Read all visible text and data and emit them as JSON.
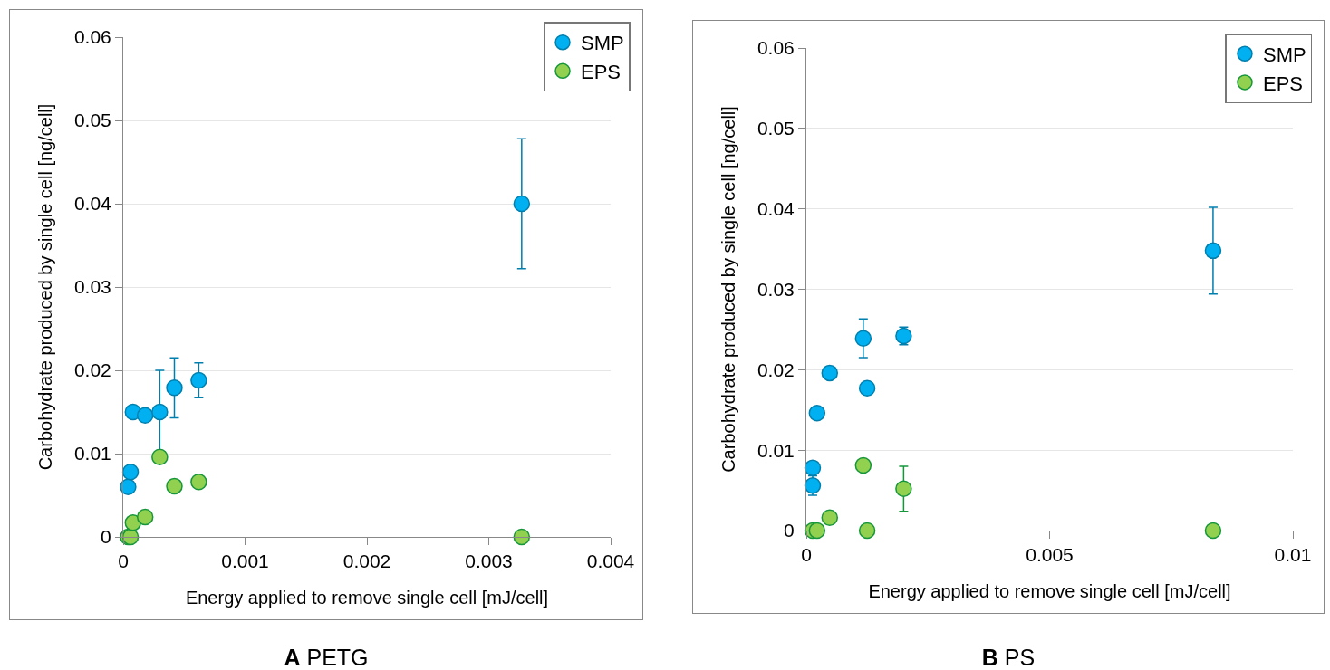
{
  "chart_data": [
    {
      "type": "scatter",
      "title": "A PETG",
      "xlabel": "Energy applied to remove single cell [mJ/cell]",
      "ylabel": "Carbohydrate produced by single cell [ng/cell]",
      "xlim": [
        0,
        0.004
      ],
      "xticks": [
        0,
        0.001,
        0.002,
        0.003,
        0.004
      ],
      "ylim": [
        0,
        0.06
      ],
      "yticks": [
        0,
        0.01,
        0.02,
        0.03,
        0.04,
        0.05,
        0.06
      ],
      "grid": "y",
      "legend": "top right",
      "marker": "circle",
      "series": [
        {
          "name": "SMP",
          "color": "#00b0f0",
          "x": [
            4e-05,
            6e-05,
            8e-05,
            0.00018,
            0.0003,
            0.00042,
            0.00062,
            0.00327
          ],
          "values": [
            0.006,
            0.0078,
            0.015,
            0.0146,
            0.015,
            0.0179,
            0.0188,
            0.04
          ],
          "errors": [
            null,
            null,
            null,
            null,
            0.005,
            0.0036,
            0.0021,
            0.0078
          ]
        },
        {
          "name": "EPS",
          "color": "#92d050",
          "x": [
            4e-05,
            6e-05,
            8e-05,
            0.00018,
            0.0003,
            0.00042,
            0.00062,
            0.00327
          ],
          "values": [
            0,
            0,
            0.0017,
            0.0024,
            0.0096,
            0.0061,
            0.0066,
            0
          ]
        }
      ]
    },
    {
      "type": "scatter",
      "title": "B PS",
      "xlabel": "Energy applied to remove single cell [mJ/cell]",
      "ylabel": "Carbohydrate produced by single cell [ng/cell]",
      "xlim": [
        0,
        0.01
      ],
      "xticks": [
        0,
        0.005,
        0.01
      ],
      "ylim": [
        0,
        0.06
      ],
      "yticks": [
        0,
        0.01,
        0.02,
        0.03,
        0.04,
        0.05,
        0.06
      ],
      "grid": "y",
      "legend": "top right",
      "marker": "circle",
      "series": [
        {
          "name": "SMP",
          "color": "#00b0f0",
          "x": [
            0.00013,
            0.00013,
            0.00022,
            0.00048,
            0.00117,
            0.00125,
            0.002,
            0.00836
          ],
          "values": [
            0.0078,
            0.0056,
            0.0146,
            0.0196,
            0.0239,
            0.0177,
            0.0242,
            0.0348
          ],
          "errors": [
            null,
            0.0012,
            null,
            null,
            0.0024,
            null,
            0.0011,
            0.0054
          ]
        },
        {
          "name": "EPS",
          "color": "#92d050",
          "x": [
            0.00013,
            0.00022,
            0.00048,
            0.00117,
            0.00125,
            0.002,
            0.00836
          ],
          "values": [
            0,
            0,
            0.0016,
            0.0081,
            0,
            0.0052,
            0
          ],
          "errors": [
            null,
            null,
            null,
            null,
            null,
            0.0028,
            null
          ]
        }
      ]
    }
  ]
}
